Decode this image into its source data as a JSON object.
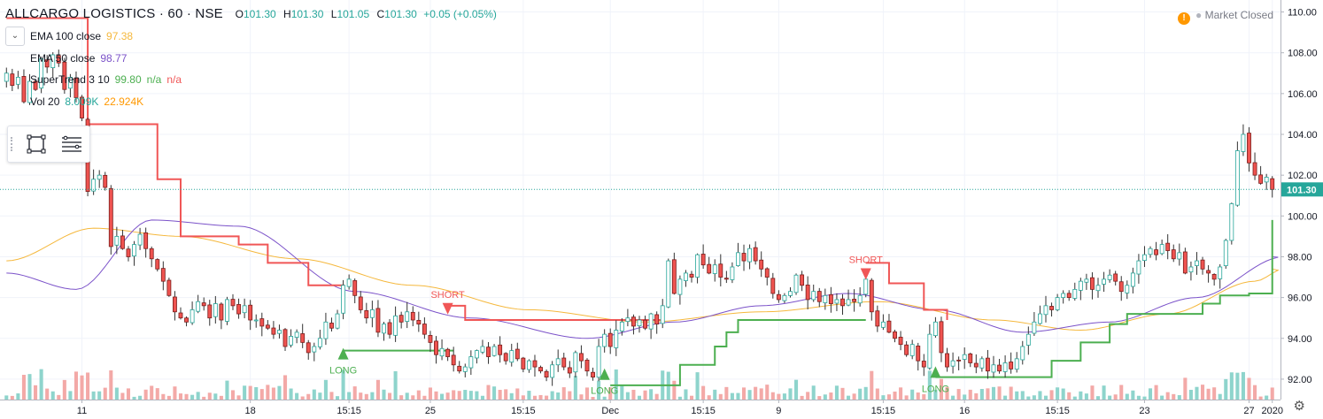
{
  "header": {
    "symbol": "ALLCARGO LOGISTICS · 60 · NSE",
    "o_label": "O",
    "o_value": "101.30",
    "h_label": "H",
    "h_value": "101.30",
    "l_label": "L",
    "l_value": "101.05",
    "c_label": "C",
    "c_value": "101.30",
    "change": "+0.05 (+0.05%)"
  },
  "status": {
    "text": "Market Closed",
    "warning_icon": "warning-icon",
    "dot": "●"
  },
  "indicators": [
    {
      "label": "EMA 100 close",
      "v1": "97.38",
      "v2": "",
      "v3": "",
      "c1": "#f5b83d",
      "c2": "",
      "c3": ""
    },
    {
      "label": "EMA 50 close",
      "v1": "98.77",
      "v2": "",
      "v3": "",
      "c1": "#7b52c9",
      "c2": "",
      "c3": ""
    },
    {
      "label": "SuperTrend 3 10",
      "v1": "99.80",
      "v2": "n/a",
      "v3": "n/a",
      "c1": "#4caf50",
      "c2": "#4caf50",
      "c3": "#f05656"
    },
    {
      "label": "Vol 20",
      "v1": "8.009K",
      "v2": "22.924K",
      "v3": "",
      "c1": "#26a69a",
      "c2": "#ff9800",
      "c3": ""
    }
  ],
  "colors": {
    "up": "#26a69a",
    "down": "#ef5350",
    "candle_up_fill": "#ffffff",
    "ema100": "#f5b83d",
    "ema50": "#7b52c9",
    "st_long": "#4caf50",
    "st_short": "#f05656",
    "vol_up": "#8ed4cc",
    "vol_down": "#f3a9a7"
  },
  "chart_data": {
    "type": "candlestick",
    "y_ticks": [
      "92.00",
      "94.00",
      "96.00",
      "98.00",
      "100.00",
      "102.00",
      "104.00",
      "106.00",
      "108.00",
      "110.00"
    ],
    "ylim": [
      91,
      110.5
    ],
    "x_ticks": [
      "11",
      "18",
      "15:15",
      "25",
      "15:15",
      "Dec",
      "15:15",
      "9",
      "15:15",
      "16",
      "15:15",
      "23",
      "27",
      "2020"
    ],
    "last_price": "101.30",
    "last_price_value": 101.3,
    "signals": [
      {
        "label": "LONG",
        "type": "long",
        "bar": 58,
        "price": 93.4
      },
      {
        "label": "SHORT",
        "type": "short",
        "bar": 76,
        "price": 95.3
      },
      {
        "label": "LONG",
        "type": "long",
        "bar": 103,
        "price": 92.4
      },
      {
        "label": "SHORT",
        "type": "short",
        "bar": 148,
        "price": 97.0
      },
      {
        "label": "LONG",
        "type": "long",
        "bar": 160,
        "price": 92.5
      }
    ],
    "ema50_anchors": [
      [
        0,
        97.2
      ],
      [
        12,
        96.4
      ],
      [
        25,
        99.8
      ],
      [
        40,
        99.5
      ],
      [
        60,
        96.3
      ],
      [
        80,
        95.0
      ],
      [
        100,
        94.0
      ],
      [
        115,
        94.8
      ],
      [
        130,
        95.6
      ],
      [
        145,
        96.2
      ],
      [
        160,
        95.4
      ],
      [
        175,
        94.3
      ],
      [
        190,
        94.8
      ],
      [
        205,
        96.0
      ],
      [
        220,
        98.0
      ]
    ],
    "ema100_anchors": [
      [
        0,
        97.8
      ],
      [
        15,
        99.4
      ],
      [
        30,
        99.0
      ],
      [
        50,
        97.9
      ],
      [
        70,
        96.6
      ],
      [
        90,
        95.4
      ],
      [
        110,
        94.8
      ],
      [
        130,
        95.3
      ],
      [
        150,
        95.8
      ],
      [
        170,
        94.9
      ],
      [
        185,
        94.4
      ],
      [
        200,
        95.2
      ],
      [
        215,
        96.8
      ],
      [
        220,
        97.4
      ]
    ],
    "supertrend": [
      {
        "trend": "short",
        "points": [
          [
            0,
            109.7
          ],
          [
            13,
            109.7
          ],
          [
            14,
            104.5
          ],
          [
            26,
            101.8
          ],
          [
            30,
            99.0
          ],
          [
            40,
            98.6
          ],
          [
            45,
            97.7
          ],
          [
            52,
            96.6
          ],
          [
            58,
            95.9
          ]
        ]
      },
      {
        "trend": "long",
        "points": [
          [
            58,
            93.4
          ],
          [
            77,
            93.4
          ]
        ]
      },
      {
        "trend": "short",
        "points": [
          [
            76,
            95.6
          ],
          [
            79,
            94.9
          ],
          [
            110,
            94.9
          ],
          [
            113,
            94.8
          ]
        ]
      },
      {
        "trend": "long",
        "points": [
          [
            104,
            91.7
          ],
          [
            113,
            91.7
          ],
          [
            116,
            92.7
          ],
          [
            122,
            93.6
          ],
          [
            124,
            94.3
          ],
          [
            126,
            94.9
          ],
          [
            148,
            94.9
          ]
        ]
      },
      {
        "trend": "short",
        "points": [
          [
            148,
            97.7
          ],
          [
            152,
            96.7
          ],
          [
            158,
            95.4
          ],
          [
            162,
            94.9
          ]
        ]
      },
      {
        "trend": "long",
        "points": [
          [
            160,
            92.1
          ],
          [
            176,
            92.1
          ],
          [
            180,
            92.9
          ],
          [
            185,
            93.8
          ],
          [
            190,
            94.7
          ],
          [
            193,
            95.2
          ],
          [
            200,
            95.2
          ],
          [
            206,
            95.7
          ],
          [
            209,
            96.1
          ],
          [
            214,
            96.2
          ],
          [
            218,
            97.6
          ],
          [
            221,
            98.8
          ],
          [
            226,
            99.8
          ],
          [
            231,
            99.8
          ]
        ]
      }
    ],
    "closes": [
      107.0,
      106.4,
      106.8,
      105.6,
      106.6,
      106.2,
      107.7,
      107.3,
      107.9,
      107.5,
      106.2,
      106.8,
      105.8,
      104.8,
      101.2,
      101.8,
      102.0,
      101.4,
      98.5,
      99.0,
      98.4,
      98.0,
      98.6,
      99.1,
      98.4,
      97.9,
      97.4,
      96.8,
      96.1,
      95.3,
      95.0,
      94.8,
      95.4,
      95.8,
      95.6,
      95.0,
      95.7,
      94.9,
      95.9,
      95.6,
      95.2,
      95.6,
      94.9,
      94.9,
      94.6,
      94.5,
      94.2,
      94.4,
      93.6,
      94.1,
      94.3,
      93.8,
      93.3,
      93.6,
      94.0,
      94.8,
      94.5,
      95.2,
      96.6,
      96.9,
      96.1,
      95.4,
      95.0,
      95.4,
      94.3,
      94.7,
      94.2,
      95.1,
      94.8,
      95.3,
      94.9,
      94.7,
      94.2,
      93.8,
      93.2,
      93.5,
      93.1,
      92.7,
      92.4,
      92.6,
      93.1,
      93.4,
      93.6,
      93.1,
      93.6,
      93.2,
      92.9,
      93.4,
      93.0,
      92.5,
      92.9,
      92.6,
      92.4,
      92.1,
      92.7,
      93.0,
      92.6,
      92.3,
      93.3,
      92.9,
      92.4,
      92.1,
      93.6,
      94.2,
      93.6,
      94.4,
      94.8,
      95.0,
      94.6,
      94.9,
      94.5,
      95.2,
      94.7,
      95.6,
      97.8,
      96.2,
      96.9,
      97.2,
      97.0,
      98.1,
      97.6,
      97.2,
      97.6,
      97.0,
      96.9,
      97.5,
      98.2,
      97.8,
      98.4,
      97.8,
      97.4,
      97.0,
      96.2,
      95.9,
      96.1,
      96.3,
      97.1,
      96.6,
      95.9,
      96.3,
      95.8,
      96.1,
      95.7,
      95.9,
      95.6,
      95.9,
      95.8,
      96.1,
      96.9,
      95.3,
      94.6,
      94.8,
      94.3,
      94.0,
      93.7,
      93.2,
      93.7,
      92.9,
      92.6,
      94.2,
      94.8,
      93.3,
      92.6,
      92.9,
      92.9,
      93.2,
      92.8,
      92.6,
      93.0,
      92.4,
      92.7,
      92.4,
      92.8,
      92.5,
      93.0,
      93.6,
      94.2,
      94.8,
      95.2,
      95.6,
      95.4,
      96.0,
      96.2,
      96.0,
      96.4,
      96.8,
      96.9,
      96.4,
      96.6,
      96.9,
      97.1,
      96.8,
      96.3,
      96.6,
      97.2,
      97.8,
      98.1,
      98.4,
      98.1,
      98.6,
      98.3,
      97.9,
      98.2,
      97.2,
      97.5,
      97.8,
      97.4,
      97.2,
      96.9,
      97.5,
      98.8,
      100.6,
      103.2,
      104.0,
      102.6,
      102.0,
      101.6,
      101.9,
      101.3
    ]
  }
}
